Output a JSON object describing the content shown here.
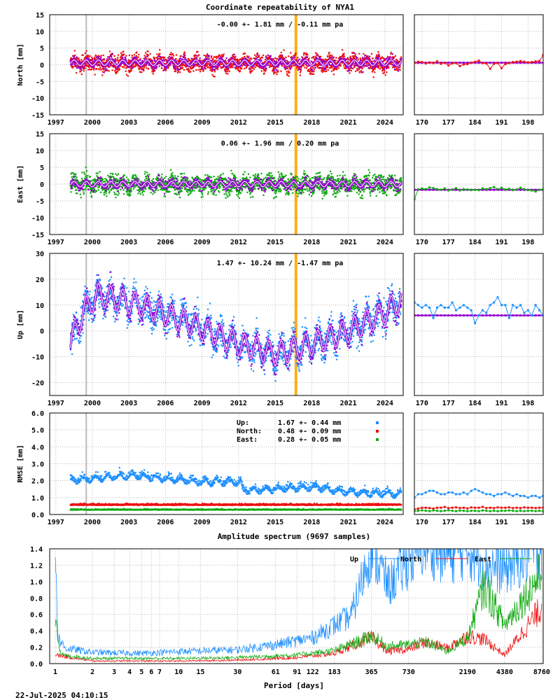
{
  "title": "Coordinate repeatability of NYA1",
  "year_ticks": [
    "1997",
    "2000",
    "2003",
    "2006",
    "2009",
    "2012",
    "2015",
    "2018",
    "2021",
    "2024"
  ],
  "doy_ticks": [
    "170",
    "177",
    "184",
    "191",
    "198"
  ],
  "colors": {
    "north": "#ee1111",
    "east": "#11aa11",
    "up": "#1e90ff",
    "model": "#9400d3",
    "event_gray": "#aaaaaa",
    "event_orange": "#ffa500"
  },
  "chart_data": [
    {
      "type": "scatter",
      "ylabel": "North [mm]",
      "ylim": [
        -15,
        15
      ],
      "yticks": [
        "15",
        "10",
        "5",
        "0",
        "-5",
        "-10",
        "-15"
      ],
      "xlim": [
        1996.5,
        2025.5
      ],
      "stats": "-0.00 +- 1.81 mm / -0.11 mm pa",
      "series": [
        {
          "color": "north",
          "offset": 0.5,
          "amplitude": 0.9,
          "scatter": 1.8
        },
        {
          "color": "model",
          "offset": 0.6,
          "amplitude": 0.8,
          "scatter": 0.3
        }
      ],
      "events": [
        1999.5,
        2016.7
      ],
      "recent_doy": [
        168,
        169,
        170,
        171,
        172,
        173,
        174,
        175,
        176,
        177,
        178,
        179,
        180,
        181,
        182,
        183,
        184,
        185,
        186,
        187,
        188,
        189,
        190,
        191,
        192,
        193,
        194,
        195,
        196,
        197,
        198,
        199,
        200,
        201,
        202
      ],
      "recent_values": [
        0.6,
        0.9,
        0.8,
        0.4,
        0.7,
        0.5,
        1.0,
        0.3,
        0.6,
        -0.2,
        0.4,
        0.5,
        -0.4,
        0.1,
        0.2,
        0.6,
        0.9,
        1.2,
        0.5,
        0.4,
        -1.2,
        0.3,
        0.5,
        -1.0,
        0.2,
        0.5,
        0.8,
        0.9,
        1.1,
        0.9,
        0.7,
        0.8,
        1.0,
        1.1,
        2.9
      ],
      "recent_model": 0.6
    },
    {
      "type": "scatter",
      "ylabel": "East [mm]",
      "ylim": [
        -15,
        15
      ],
      "yticks": [
        "15",
        "10",
        "5",
        "0",
        "-5",
        "-10",
        "-15"
      ],
      "xlim": [
        1996.5,
        2025.5
      ],
      "stats": "0.06 +- 1.96 mm /  0.20 mm pa",
      "series": [
        {
          "color": "east",
          "offset": 0.0,
          "amplitude": 0.9,
          "scatter": 2.0
        },
        {
          "color": "model",
          "offset": 0.0,
          "amplitude": 0.8,
          "scatter": 0.3
        }
      ],
      "events": [
        1999.5,
        2016.7
      ],
      "recent_doy": [
        168,
        169,
        170,
        171,
        172,
        173,
        174,
        175,
        176,
        177,
        178,
        179,
        180,
        181,
        182,
        183,
        184,
        185,
        186,
        187,
        188,
        189,
        190,
        191,
        192,
        193,
        194,
        195,
        196,
        197,
        198,
        199,
        200,
        201,
        202
      ],
      "recent_values": [
        -4.5,
        -1.6,
        -1.3,
        -1.5,
        -1.0,
        -1.2,
        -1.5,
        -1.7,
        -1.3,
        -1.9,
        -1.6,
        -1.2,
        -1.9,
        -1.5,
        -1.6,
        -1.8,
        -1.7,
        -1.8,
        -1.3,
        -1.5,
        -1.2,
        -0.9,
        -1.5,
        -1.1,
        -1.6,
        -1.4,
        -1.8,
        -1.6,
        -1.1,
        -1.5,
        -1.8,
        -1.9,
        -2.2,
        -1.7,
        -1.5
      ],
      "recent_model": -1.7
    },
    {
      "type": "scatter",
      "ylabel": "Up [mm]",
      "ylim": [
        -25,
        30
      ],
      "yticks": [
        "30",
        "20",
        "10",
        "0",
        "-10",
        "-20"
      ],
      "xlim": [
        1996.5,
        2025.5
      ],
      "stats": "1.47 +- 10.24 mm / -1.47 mm pa",
      "series": [
        {
          "color": "up",
          "amplitude": 3.5,
          "scatter": 4.5
        },
        {
          "color": "model",
          "amplitude": 4.5,
          "scatter": 0.4
        }
      ],
      "trend_knots": [
        [
          1998.2,
          -5
        ],
        [
          1999.3,
          8
        ],
        [
          2000.5,
          14
        ],
        [
          2004,
          10
        ],
        [
          2008,
          3
        ],
        [
          2012,
          -5
        ],
        [
          2015,
          -9
        ],
        [
          2018,
          -5
        ],
        [
          2021,
          0
        ],
        [
          2024,
          7
        ],
        [
          2025.3,
          12
        ]
      ],
      "events": [
        1999.5,
        2016.7
      ],
      "recent_doy": [
        168,
        169,
        170,
        171,
        172,
        173,
        174,
        175,
        176,
        177,
        178,
        179,
        180,
        181,
        182,
        183,
        184,
        185,
        186,
        187,
        188,
        189,
        190,
        191,
        192,
        193,
        194,
        195,
        196,
        197,
        198,
        199,
        200,
        201,
        202
      ],
      "recent_values": [
        11,
        10,
        9,
        10,
        9,
        5,
        9,
        10,
        9,
        9,
        11,
        8,
        9,
        10,
        9,
        8,
        3,
        6,
        8,
        7,
        10,
        11,
        13,
        10,
        10,
        5,
        10,
        9,
        10,
        7,
        8,
        6,
        10,
        8,
        6
      ],
      "recent_model": 6
    },
    {
      "type": "scatter",
      "ylabel": "RMSE [mm]",
      "ylim": [
        0,
        6
      ],
      "yticks": [
        "6.0",
        "5.0",
        "4.0",
        "3.0",
        "2.0",
        "1.0",
        "0.0"
      ],
      "xlim": [
        1996.5,
        2025.5
      ],
      "events": [
        1999.5
      ],
      "legend": [
        {
          "label": "Up:",
          "value": "1.67 +- 0.44 mm",
          "color": "up"
        },
        {
          "label": "North:",
          "value": "0.48 +- 0.09 mm",
          "color": "north"
        },
        {
          "label": "East:",
          "value": "0.28 +- 0.05 mm",
          "color": "east"
        }
      ],
      "series": [
        {
          "color": "up",
          "knots": [
            [
              1998.2,
              2.0
            ],
            [
              2003,
              2.3
            ],
            [
              2009,
              1.9
            ],
            [
              2012.2,
              1.9
            ],
            [
              2012.3,
              1.4
            ],
            [
              2018,
              1.6
            ],
            [
              2021,
              1.3
            ],
            [
              2025.3,
              1.2
            ]
          ],
          "scatter": 0.25
        },
        {
          "color": "north",
          "level": 0.55,
          "scatter": 0.08
        },
        {
          "color": "east",
          "level": 0.27,
          "scatter": 0.05
        }
      ],
      "recent_doy": [
        168,
        169,
        170,
        171,
        172,
        173,
        174,
        175,
        176,
        177,
        178,
        179,
        180,
        181,
        182,
        183,
        184,
        185,
        186,
        187,
        188,
        189,
        190,
        191,
        192,
        193,
        194,
        195,
        196,
        197,
        198,
        199,
        200,
        201,
        202
      ],
      "recent_up": [
        1.0,
        1.2,
        1.2,
        1.3,
        1.4,
        1.4,
        1.3,
        1.2,
        1.2,
        1.3,
        1.3,
        1.2,
        1.2,
        1.3,
        1.2,
        1.4,
        1.5,
        1.4,
        1.3,
        1.2,
        1.2,
        1.1,
        1.2,
        1.2,
        1.3,
        1.2,
        1.1,
        1.2,
        1.1,
        1.1,
        1.0,
        1.1,
        1.1,
        1.0,
        1.1
      ],
      "recent_north": [
        0.3,
        0.35,
        0.4,
        0.4,
        0.38,
        0.35,
        0.4,
        0.4,
        0.45,
        0.38,
        0.4,
        0.42,
        0.38,
        0.4,
        0.36,
        0.42,
        0.4,
        0.4,
        0.45,
        0.38,
        0.4,
        0.38,
        0.42,
        0.4,
        0.4,
        0.42,
        0.38,
        0.4,
        0.38,
        0.42,
        0.4,
        0.4,
        0.38,
        0.4,
        0.4
      ],
      "recent_east": [
        0.2,
        0.22,
        0.25,
        0.22,
        0.2,
        0.24,
        0.22,
        0.2,
        0.22,
        0.25,
        0.22,
        0.2,
        0.23,
        0.22,
        0.2,
        0.22,
        0.22,
        0.2,
        0.24,
        0.22,
        0.2,
        0.22,
        0.2,
        0.22,
        0.22,
        0.24,
        0.22,
        0.2,
        0.22,
        0.2,
        0.22,
        0.22,
        0.2,
        0.22,
        0.2
      ]
    },
    {
      "type": "line",
      "title": "Amplitude spectrum (9697 samples)",
      "xlabel": "Period [days]",
      "xscale": "log",
      "xlim": [
        0.9,
        9000
      ],
      "ylim": [
        0,
        1.4
      ],
      "yticks": [
        "1.4",
        "1.2",
        "1.0",
        "0.8",
        "0.6",
        "0.4",
        "0.2",
        "0.0"
      ],
      "xticks": [
        "1",
        "2",
        "3",
        "4",
        "5",
        "6",
        "7",
        "10",
        "15",
        "30",
        "61",
        "91",
        "122",
        "183",
        "365",
        "730",
        "2190",
        "4380",
        "8760"
      ],
      "xtick_values": [
        1,
        2,
        3,
        4,
        5,
        6,
        7,
        10,
        15,
        30,
        61,
        91,
        122,
        183,
        365,
        730,
        2190,
        4380,
        8760
      ],
      "legend_position": "top-right",
      "series": [
        {
          "name": "Up",
          "color": "up",
          "points": [
            [
              1,
              1.4
            ],
            [
              1.05,
              0.3
            ],
            [
              1.2,
              0.18
            ],
            [
              2,
              0.13
            ],
            [
              5,
              0.12
            ],
            [
              10,
              0.14
            ],
            [
              30,
              0.16
            ],
            [
              61,
              0.22
            ],
            [
              122,
              0.3
            ],
            [
              183,
              0.45
            ],
            [
              250,
              0.55
            ],
            [
              365,
              1.35
            ],
            [
              500,
              0.9
            ],
            [
              730,
              1.2
            ],
            [
              1000,
              1.4
            ],
            [
              1500,
              1.25
            ],
            [
              2190,
              1.35
            ],
            [
              3000,
              1.15
            ],
            [
              4380,
              1.1
            ],
            [
              8760,
              1.35
            ]
          ]
        },
        {
          "name": "North",
          "color": "north",
          "points": [
            [
              1,
              0.1
            ],
            [
              2,
              0.03
            ],
            [
              10,
              0.03
            ],
            [
              30,
              0.04
            ],
            [
              91,
              0.07
            ],
            [
              183,
              0.12
            ],
            [
              365,
              0.3
            ],
            [
              500,
              0.14
            ],
            [
              730,
              0.17
            ],
            [
              1000,
              0.25
            ],
            [
              1500,
              0.18
            ],
            [
              2190,
              0.32
            ],
            [
              3000,
              0.28
            ],
            [
              4380,
              0.1
            ],
            [
              8760,
              0.65
            ]
          ]
        },
        {
          "name": "East",
          "color": "east",
          "points": [
            [
              1,
              0.6
            ],
            [
              1.1,
              0.1
            ],
            [
              2,
              0.06
            ],
            [
              10,
              0.06
            ],
            [
              30,
              0.07
            ],
            [
              91,
              0.1
            ],
            [
              183,
              0.15
            ],
            [
              365,
              0.32
            ],
            [
              500,
              0.2
            ],
            [
              730,
              0.22
            ],
            [
              1000,
              0.25
            ],
            [
              1500,
              0.14
            ],
            [
              2190,
              0.3
            ],
            [
              3000,
              0.9
            ],
            [
              4380,
              0.45
            ],
            [
              8760,
              1.05
            ]
          ]
        }
      ]
    }
  ],
  "timestamp": "22-Jul-2025 04:10:15"
}
